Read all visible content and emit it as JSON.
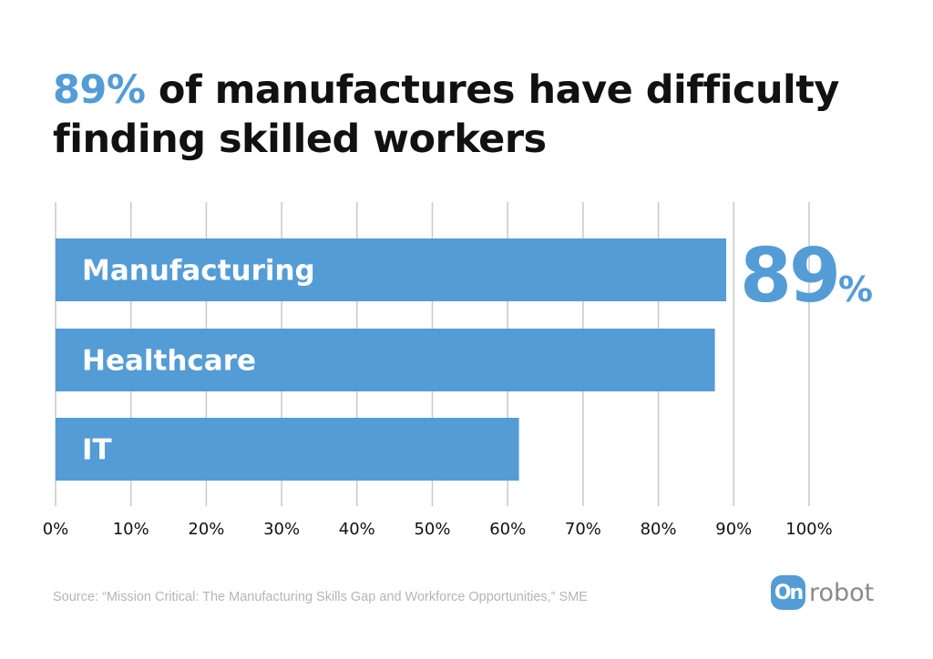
{
  "title": {
    "highlight": "89%",
    "line1_rest": " of manufactures have difficulty",
    "line2": "finding skilled workers"
  },
  "chart_data": {
    "type": "bar",
    "orientation": "horizontal",
    "categories": [
      "Manufacturing",
      "Healthcare",
      "IT"
    ],
    "values": [
      89,
      87.5,
      61.5
    ],
    "xlim": [
      0,
      100
    ],
    "ticks": [
      "0%",
      "10%",
      "20%",
      "30%",
      "40%",
      "50%",
      "60%",
      "70%",
      "80%",
      "90%",
      "100%"
    ],
    "grid": true,
    "bar_color": "#549cd6",
    "callout": {
      "number": "89",
      "unit": "%"
    }
  },
  "source": "Source: “Mission Critical: The Manufacturing Skills Gap and Workforce Opportunities,” SME",
  "logo": {
    "badge": "On",
    "word": "robot"
  }
}
